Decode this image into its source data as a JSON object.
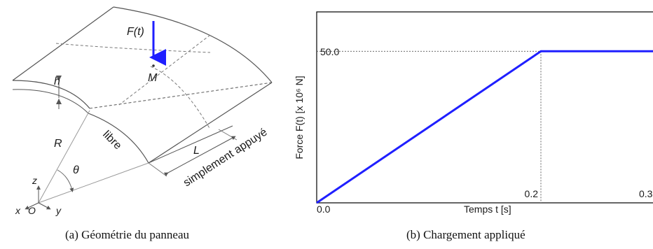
{
  "panel_a": {
    "labels": {
      "force": "F(t)",
      "point": "M",
      "thickness": "h",
      "radius": "R",
      "angle": "θ",
      "edge_free": "libre",
      "length": "L",
      "edge_supported": "simplement appuyé"
    },
    "axes": {
      "x": "x",
      "y": "y",
      "z": "z",
      "origin": "O"
    },
    "caption": "(a)  Géométrie du panneau",
    "colors": {
      "force_arrow": "#1f1fff",
      "lines": "#555555"
    }
  },
  "panel_b": {
    "caption": "(b)  Chargement appliqué",
    "chart_data": {
      "type": "line",
      "xlabel": "Temps t [s]",
      "ylabel": "Force F(t) [x 10⁶ N]",
      "series": [
        {
          "x": [
            0.0,
            0.2,
            0.3
          ],
          "y": [
            0.0,
            50.0,
            50.0
          ],
          "color": "#1f1fff"
        }
      ],
      "xlim": [
        0.0,
        0.3
      ],
      "ylim": [
        0.0,
        63.0
      ],
      "ticks": {
        "x0": "0.0",
        "x_ramp": "0.2",
        "x_end": "0.3",
        "y_plateau": "50.0"
      },
      "ramp_end_x": 0.2,
      "plateau_y": 50.0,
      "grid": false
    }
  }
}
